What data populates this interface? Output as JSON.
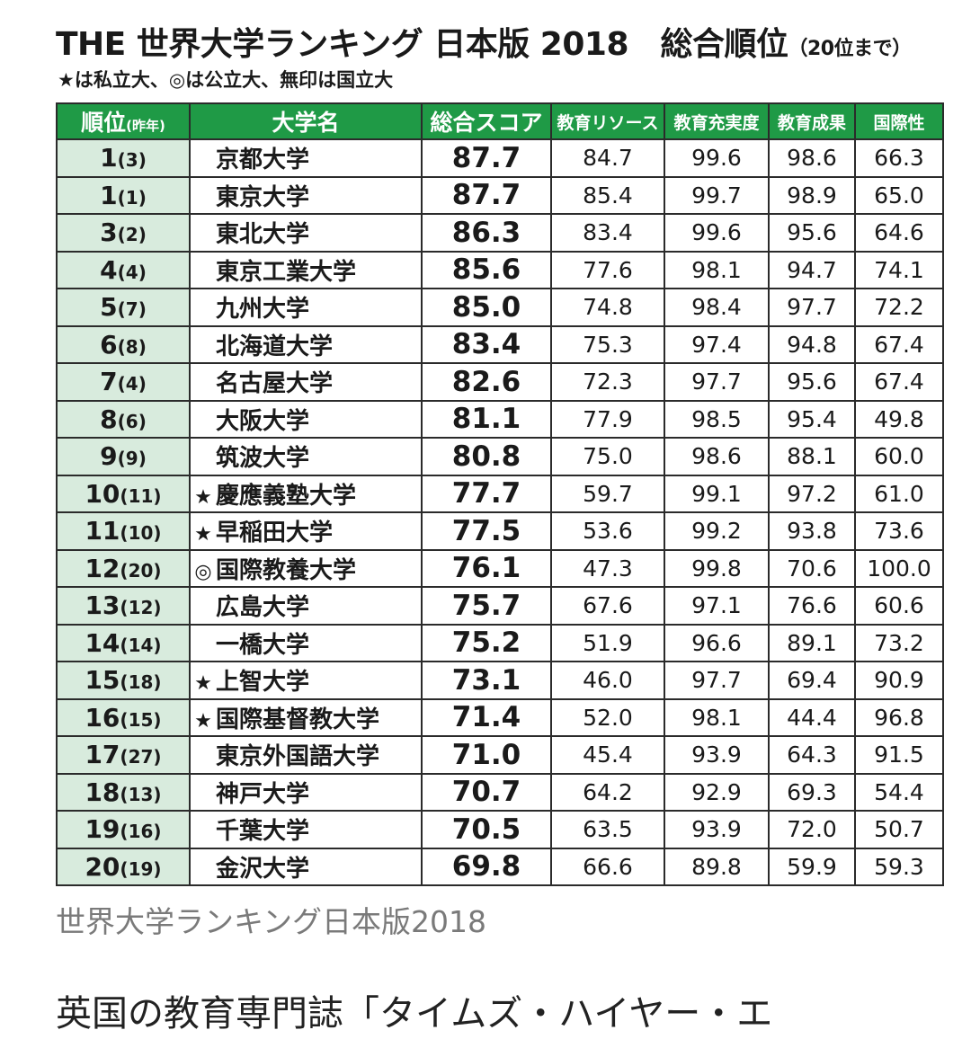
{
  "title": {
    "main": "THE 世界大学ランキング 日本版 2018　総合順位",
    "note": "（20位まで）"
  },
  "legend": "★は私立大、◎は公立大、無印は国立大",
  "headers": {
    "rank": "順位",
    "rank_prev": "(昨年)",
    "name": "大学名",
    "total": "総合スコア",
    "resources": "教育リソース",
    "engagement": "教育充実度",
    "outcomes": "教育成果",
    "international": "国際性"
  },
  "rows": [
    {
      "rank": "1",
      "prev": "(3)",
      "mark": "",
      "name": "京都大学",
      "total": "87.7",
      "resources": "84.7",
      "engagement": "99.6",
      "outcomes": "98.6",
      "international": "66.3"
    },
    {
      "rank": "1",
      "prev": "(1)",
      "mark": "",
      "name": "東京大学",
      "total": "87.7",
      "resources": "85.4",
      "engagement": "99.7",
      "outcomes": "98.9",
      "international": "65.0"
    },
    {
      "rank": "3",
      "prev": "(2)",
      "mark": "",
      "name": "東北大学",
      "total": "86.3",
      "resources": "83.4",
      "engagement": "99.6",
      "outcomes": "95.6",
      "international": "64.6"
    },
    {
      "rank": "4",
      "prev": "(4)",
      "mark": "",
      "name": "東京工業大学",
      "total": "85.6",
      "resources": "77.6",
      "engagement": "98.1",
      "outcomes": "94.7",
      "international": "74.1"
    },
    {
      "rank": "5",
      "prev": "(7)",
      "mark": "",
      "name": "九州大学",
      "total": "85.0",
      "resources": "74.8",
      "engagement": "98.4",
      "outcomes": "97.7",
      "international": "72.2"
    },
    {
      "rank": "6",
      "prev": "(8)",
      "mark": "",
      "name": "北海道大学",
      "total": "83.4",
      "resources": "75.3",
      "engagement": "97.4",
      "outcomes": "94.8",
      "international": "67.4"
    },
    {
      "rank": "7",
      "prev": "(4)",
      "mark": "",
      "name": "名古屋大学",
      "total": "82.6",
      "resources": "72.3",
      "engagement": "97.7",
      "outcomes": "95.6",
      "international": "67.4"
    },
    {
      "rank": "8",
      "prev": "(6)",
      "mark": "",
      "name": "大阪大学",
      "total": "81.1",
      "resources": "77.9",
      "engagement": "98.5",
      "outcomes": "95.4",
      "international": "49.8"
    },
    {
      "rank": "9",
      "prev": "(9)",
      "mark": "",
      "name": "筑波大学",
      "total": "80.8",
      "resources": "75.0",
      "engagement": "98.6",
      "outcomes": "88.1",
      "international": "60.0"
    },
    {
      "rank": "10",
      "prev": "(11)",
      "mark": "★",
      "name": "慶應義塾大学",
      "total": "77.7",
      "resources": "59.7",
      "engagement": "99.1",
      "outcomes": "97.2",
      "international": "61.0"
    },
    {
      "rank": "11",
      "prev": "(10)",
      "mark": "★",
      "name": "早稲田大学",
      "total": "77.5",
      "resources": "53.6",
      "engagement": "99.2",
      "outcomes": "93.8",
      "international": "73.6"
    },
    {
      "rank": "12",
      "prev": "(20)",
      "mark": "◎",
      "name": "国際教養大学",
      "total": "76.1",
      "resources": "47.3",
      "engagement": "99.8",
      "outcomes": "70.6",
      "international": "100.0"
    },
    {
      "rank": "13",
      "prev": "(12)",
      "mark": "",
      "name": "広島大学",
      "total": "75.7",
      "resources": "67.6",
      "engagement": "97.1",
      "outcomes": "76.6",
      "international": "60.6"
    },
    {
      "rank": "14",
      "prev": "(14)",
      "mark": "",
      "name": "一橋大学",
      "total": "75.2",
      "resources": "51.9",
      "engagement": "96.6",
      "outcomes": "89.1",
      "international": "73.2"
    },
    {
      "rank": "15",
      "prev": "(18)",
      "mark": "★",
      "name": "上智大学",
      "total": "73.1",
      "resources": "46.0",
      "engagement": "97.7",
      "outcomes": "69.4",
      "international": "90.9"
    },
    {
      "rank": "16",
      "prev": "(15)",
      "mark": "★",
      "name": "国際基督教大学",
      "total": "71.4",
      "resources": "52.0",
      "engagement": "98.1",
      "outcomes": "44.4",
      "international": "96.8"
    },
    {
      "rank": "17",
      "prev": "(27)",
      "mark": "",
      "name": "東京外国語大学",
      "total": "71.0",
      "resources": "45.4",
      "engagement": "93.9",
      "outcomes": "64.3",
      "international": "91.5"
    },
    {
      "rank": "18",
      "prev": "(13)",
      "mark": "",
      "name": "神戸大学",
      "total": "70.7",
      "resources": "64.2",
      "engagement": "92.9",
      "outcomes": "69.3",
      "international": "54.4"
    },
    {
      "rank": "19",
      "prev": "(16)",
      "mark": "",
      "name": "千葉大学",
      "total": "70.5",
      "resources": "63.5",
      "engagement": "93.9",
      "outcomes": "72.0",
      "international": "50.7"
    },
    {
      "rank": "20",
      "prev": "(19)",
      "mark": "",
      "name": "金沢大学",
      "total": "69.8",
      "resources": "66.6",
      "engagement": "89.8",
      "outcomes": "59.9",
      "international": "59.3"
    }
  ],
  "caption": "世界大学ランキング日本版2018",
  "body_text": "英国の教育専門誌「タイムズ・ハイヤー・エ"
}
